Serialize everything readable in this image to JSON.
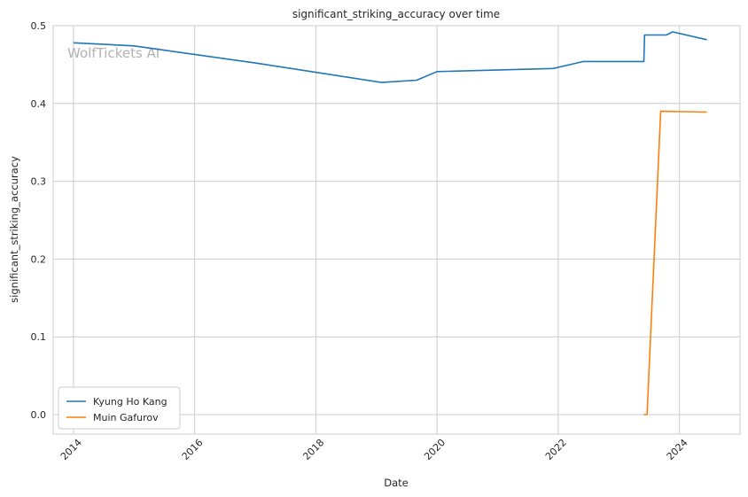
{
  "chart_data": {
    "type": "line",
    "title": "significant_striking_accuracy over time",
    "xlabel": "Date",
    "ylabel": "significant_striking_accuracy",
    "watermark": "WolfTickets AI",
    "x_ticks": [
      "2014",
      "2016",
      "2018",
      "2020",
      "2022",
      "2024"
    ],
    "y_ticks": [
      "0.0",
      "0.1",
      "0.2",
      "0.3",
      "0.4",
      "0.5"
    ],
    "xlim": [
      "2013-09-01",
      "2025-01-01"
    ],
    "ylim": [
      -0.025,
      0.5
    ],
    "grid": true,
    "legend_position": "lower-left",
    "series": [
      {
        "name": "Kyung Ho Kang",
        "color": "#1f77b4",
        "points": [
          [
            "2014-01-01",
            0.478
          ],
          [
            "2015-01-01",
            0.474
          ],
          [
            "2017-01-01",
            0.452
          ],
          [
            "2019-02-01",
            0.427
          ],
          [
            "2019-09-01",
            0.43
          ],
          [
            "2020-01-01",
            0.441
          ],
          [
            "2021-12-01",
            0.445
          ],
          [
            "2022-06-01",
            0.454
          ],
          [
            "2023-06-01",
            0.454
          ],
          [
            "2023-06-05",
            0.488
          ],
          [
            "2023-10-15",
            0.488
          ],
          [
            "2023-11-20",
            0.492
          ],
          [
            "2024-06-15",
            0.482
          ]
        ]
      },
      {
        "name": "Muin Gafurov",
        "color": "#ff7f0e",
        "points": [
          [
            "2023-06-01",
            0.0
          ],
          [
            "2023-06-20",
            0.0
          ],
          [
            "2023-09-10",
            0.39
          ],
          [
            "2024-06-15",
            0.389
          ]
        ]
      }
    ]
  }
}
